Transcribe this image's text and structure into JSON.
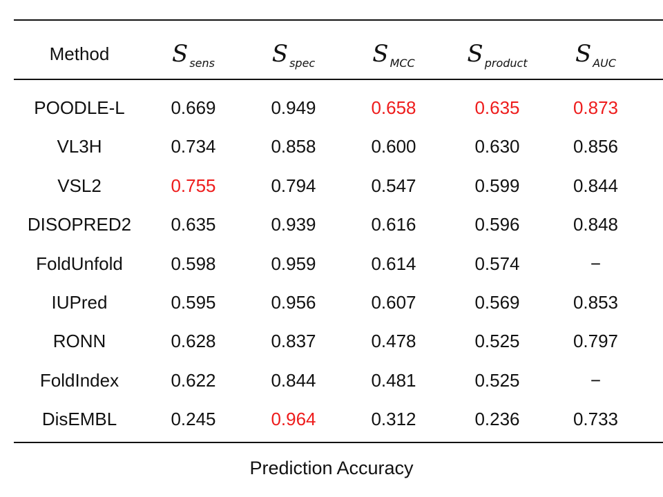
{
  "table": {
    "headers": {
      "method": "Method",
      "symbol": "S",
      "subs": [
        "sens",
        "spec",
        "MCC",
        "product",
        "AUC"
      ]
    },
    "rows": [
      {
        "method": "POODLE-L",
        "values": [
          "0.669",
          "0.949",
          "0.658",
          "0.635",
          "0.873"
        ],
        "highlight": [
          false,
          false,
          true,
          true,
          true
        ]
      },
      {
        "method": "VL3H",
        "values": [
          "0.734",
          "0.858",
          "0.600",
          "0.630",
          "0.856"
        ],
        "highlight": [
          false,
          false,
          false,
          false,
          false
        ]
      },
      {
        "method": "VSL2",
        "values": [
          "0.755",
          "0.794",
          "0.547",
          "0.599",
          "0.844"
        ],
        "highlight": [
          true,
          false,
          false,
          false,
          false
        ]
      },
      {
        "method": "DISOPRED2",
        "values": [
          "0.635",
          "0.939",
          "0.616",
          "0.596",
          "0.848"
        ],
        "highlight": [
          false,
          false,
          false,
          false,
          false
        ]
      },
      {
        "method": "FoldUnfold",
        "values": [
          "0.598",
          "0.959",
          "0.614",
          "0.574",
          "−"
        ],
        "highlight": [
          false,
          false,
          false,
          false,
          false
        ]
      },
      {
        "method": "IUPred",
        "values": [
          "0.595",
          "0.956",
          "0.607",
          "0.569",
          "0.853"
        ],
        "highlight": [
          false,
          false,
          false,
          false,
          false
        ]
      },
      {
        "method": "RONN",
        "values": [
          "0.628",
          "0.837",
          "0.478",
          "0.525",
          "0.797"
        ],
        "highlight": [
          false,
          false,
          false,
          false,
          false
        ]
      },
      {
        "method": "FoldIndex",
        "values": [
          "0.622",
          "0.844",
          "0.481",
          "0.525",
          "−"
        ],
        "highlight": [
          false,
          false,
          false,
          false,
          false
        ]
      },
      {
        "method": "DisEMBL",
        "values": [
          "0.245",
          "0.964",
          "0.312",
          "0.236",
          "0.733"
        ],
        "highlight": [
          false,
          true,
          false,
          false,
          false
        ]
      }
    ],
    "highlight_color": "#ee1c1c"
  },
  "caption": "Prediction Accuracy"
}
